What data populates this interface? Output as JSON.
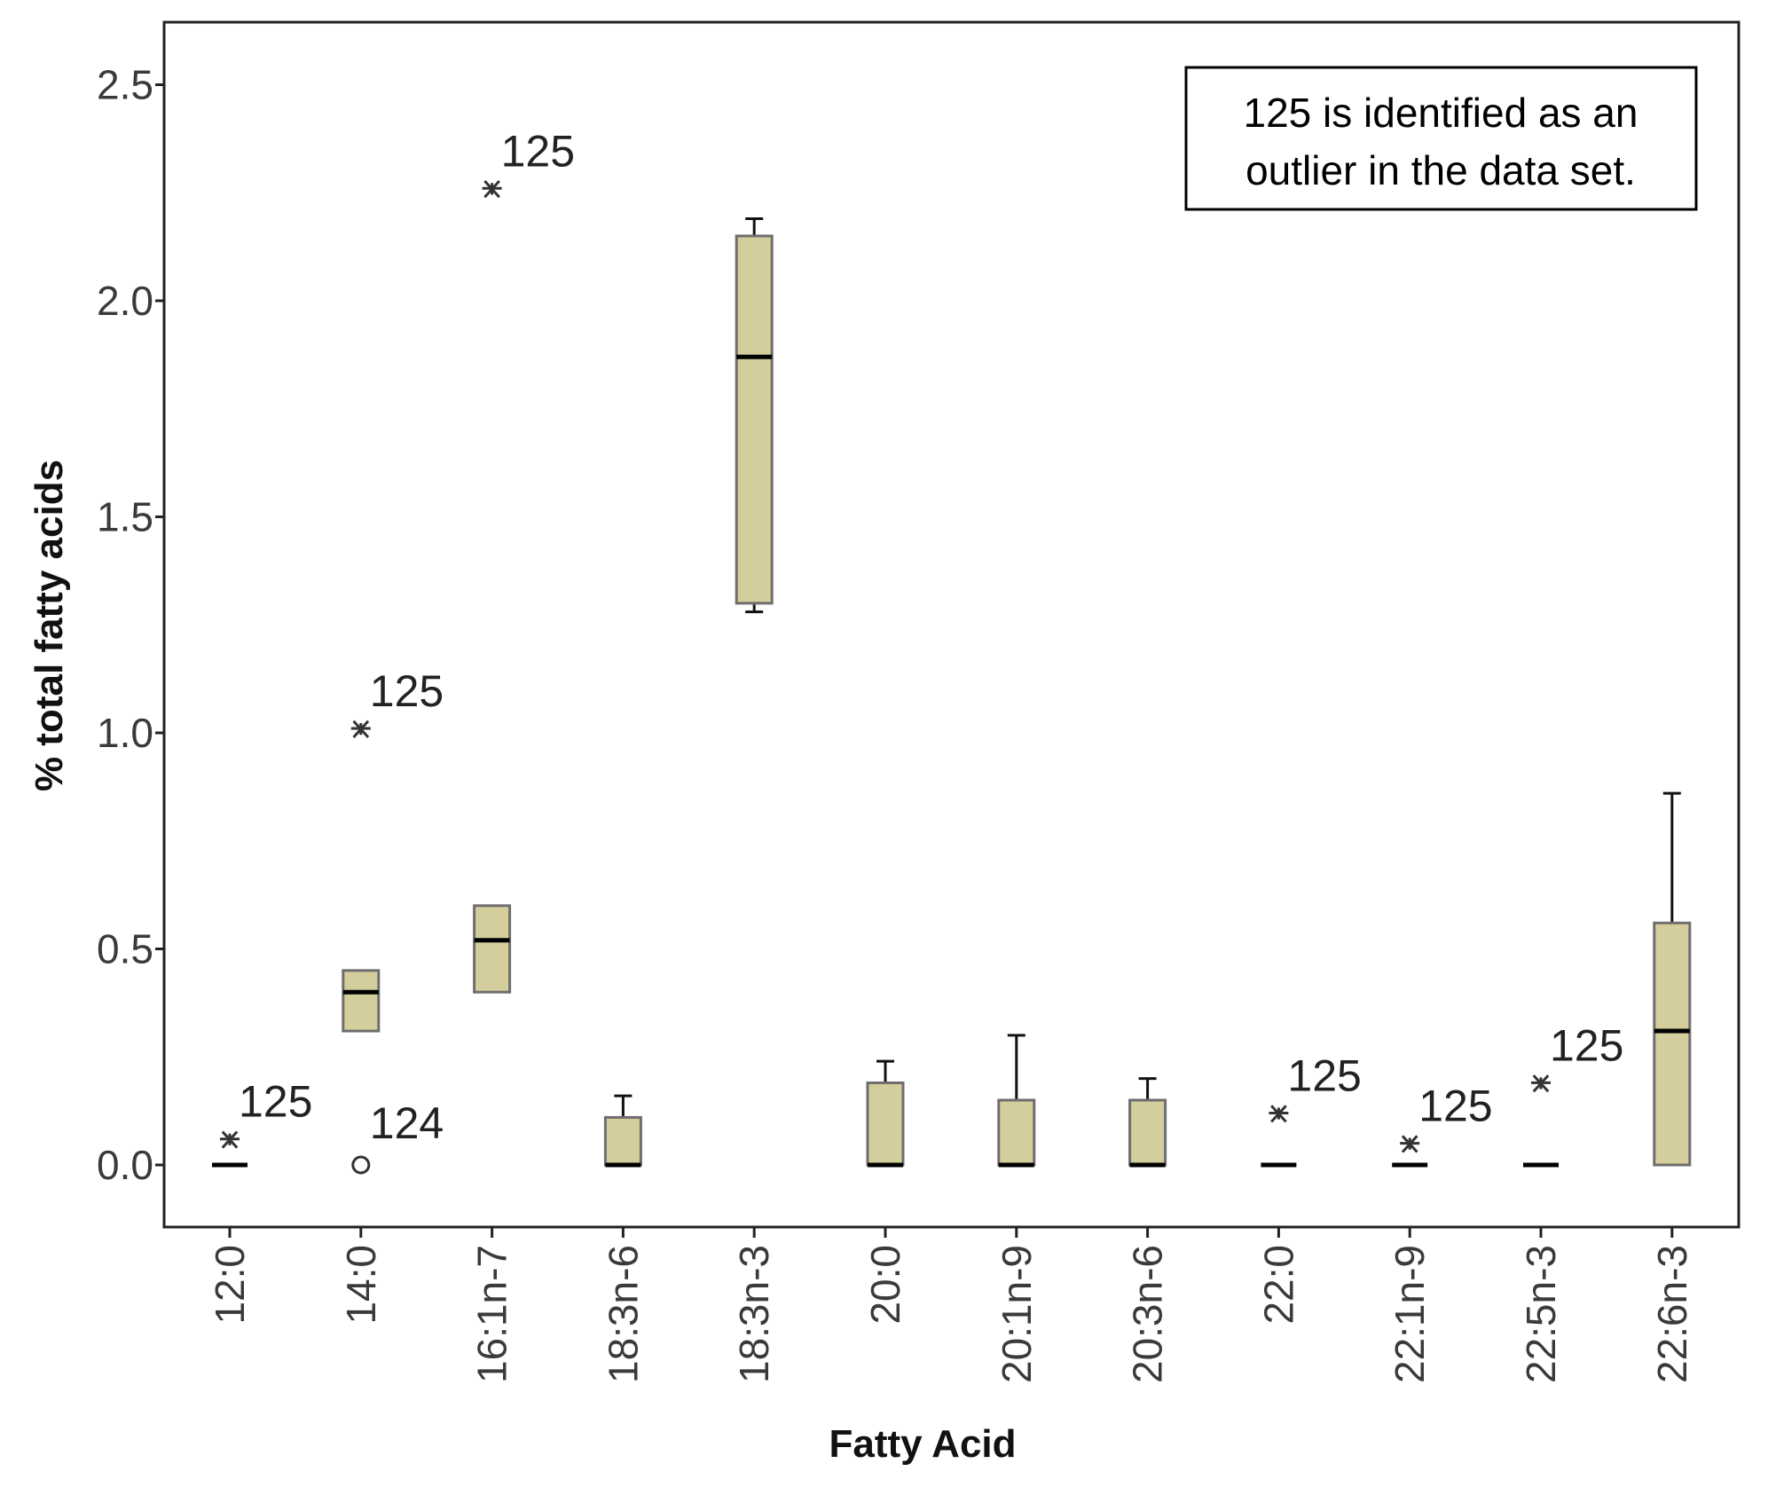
{
  "chart_data": {
    "type": "box",
    "xlabel": "Fatty Acid",
    "ylabel": "% total fatty acids",
    "ylim": [
      -0.14,
      2.64
    ],
    "yticks": [
      0.0,
      0.5,
      1.0,
      1.5,
      2.0,
      2.5
    ],
    "ytick_labels": [
      "0.0",
      "0.5",
      "1.0",
      "1.5",
      "2.0",
      "2.5"
    ],
    "grid": false,
    "categories": [
      "12:0",
      "14:0",
      "16:1n-7",
      "18:3n-6",
      "18:3n-3",
      "20:0",
      "20:1n-9",
      "20:3n-6",
      "22:0",
      "22:1n-9",
      "22:5n-3",
      "22:6n-3"
    ],
    "boxes": [
      {
        "category": "12:0",
        "whisker_low": 0.0,
        "q1": 0.0,
        "median": 0.0,
        "q3": 0.0,
        "whisker_high": 0.0
      },
      {
        "category": "14:0",
        "whisker_low": 0.31,
        "q1": 0.31,
        "median": 0.4,
        "q3": 0.45,
        "whisker_high": 0.45
      },
      {
        "category": "16:1n-7",
        "whisker_low": 0.4,
        "q1": 0.4,
        "median": 0.52,
        "q3": 0.6,
        "whisker_high": 0.6
      },
      {
        "category": "18:3n-6",
        "whisker_low": 0.0,
        "q1": 0.0,
        "median": 0.0,
        "q3": 0.11,
        "whisker_high": 0.16
      },
      {
        "category": "18:3n-3",
        "whisker_low": 1.28,
        "q1": 1.3,
        "median": 1.87,
        "q3": 2.15,
        "whisker_high": 2.19
      },
      {
        "category": "20:0",
        "whisker_low": 0.0,
        "q1": 0.0,
        "median": 0.0,
        "q3": 0.19,
        "whisker_high": 0.24
      },
      {
        "category": "20:1n-9",
        "whisker_low": 0.0,
        "q1": 0.0,
        "median": 0.0,
        "q3": 0.15,
        "whisker_high": 0.3
      },
      {
        "category": "20:3n-6",
        "whisker_low": 0.0,
        "q1": 0.0,
        "median": 0.0,
        "q3": 0.15,
        "whisker_high": 0.2
      },
      {
        "category": "22:0",
        "whisker_low": 0.0,
        "q1": 0.0,
        "median": 0.0,
        "q3": 0.0,
        "whisker_high": 0.0
      },
      {
        "category": "22:1n-9",
        "whisker_low": 0.0,
        "q1": 0.0,
        "median": 0.0,
        "q3": 0.0,
        "whisker_high": 0.0
      },
      {
        "category": "22:5n-3",
        "whisker_low": 0.0,
        "q1": 0.0,
        "median": 0.0,
        "q3": 0.0,
        "whisker_high": 0.0
      },
      {
        "category": "22:6n-3",
        "whisker_low": 0.0,
        "q1": 0.0,
        "median": 0.31,
        "q3": 0.56,
        "whisker_high": 0.86
      }
    ],
    "outliers": [
      {
        "category": "12:0",
        "value": 0.05,
        "marker": "*",
        "label": "125"
      },
      {
        "category": "14:0",
        "value": 1.0,
        "marker": "*",
        "label": "125"
      },
      {
        "category": "14:0",
        "value": 0.0,
        "marker": "o",
        "label": "124"
      },
      {
        "category": "16:1n-7",
        "value": 2.25,
        "marker": "*",
        "label": "125"
      },
      {
        "category": "22:0",
        "value": 0.11,
        "marker": "*",
        "label": "125"
      },
      {
        "category": "22:1n-9",
        "value": 0.04,
        "marker": "*",
        "label": "125"
      },
      {
        "category": "22:5n-3",
        "value": 0.18,
        "marker": "*",
        "label": "125"
      }
    ],
    "annotation": {
      "lines": [
        "125 is identified as an",
        "outlier in the data set."
      ],
      "placement": "top-right"
    },
    "colors": {
      "box_fill": "#d4ce9c",
      "box_stroke": "#6e6e6e",
      "median": "#000000",
      "whisker": "#111111",
      "frame": "#222222",
      "outlier": "#333333"
    }
  }
}
